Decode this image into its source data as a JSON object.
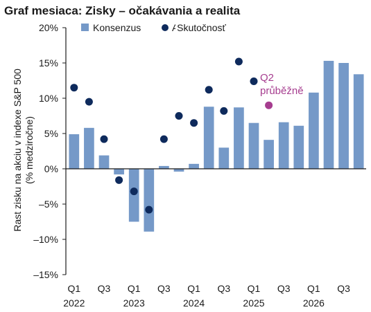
{
  "chart_data": {
    "type": "bar",
    "title": "Graf mesiaca: Zisky – očakávania a realita",
    "ylabel_line1": "Rast zisku na akciu v indexe S&P 500",
    "ylabel_line2": "(% medziročne)",
    "ylim": [
      -15,
      20
    ],
    "yticks": [
      -15,
      -10,
      -5,
      0,
      5,
      10,
      15,
      20
    ],
    "ytick_labels": [
      "–15%",
      "–10%",
      "–5%",
      "0%",
      "5%",
      "10%",
      "15%",
      "20%"
    ],
    "x_quarter_ticks": [
      {
        "label": "Q1",
        "index": 0
      },
      {
        "label": "Q3",
        "index": 2
      },
      {
        "label": "Q1",
        "index": 4
      },
      {
        "label": "Q3",
        "index": 6
      },
      {
        "label": "Q1",
        "index": 8
      },
      {
        "label": "Q3",
        "index": 10
      },
      {
        "label": "Q1",
        "index": 12
      },
      {
        "label": "Q3",
        "index": 14
      },
      {
        "label": "Q1",
        "index": 16
      },
      {
        "label": "Q3",
        "index": 18
      }
    ],
    "x_year_ticks": [
      {
        "label": "2022",
        "index": 0
      },
      {
        "label": "2023",
        "index": 4
      },
      {
        "label": "2024",
        "index": 8
      },
      {
        "label": "2025",
        "index": 12
      },
      {
        "label": "2026",
        "index": 16
      }
    ],
    "series": [
      {
        "name": "Konsenzus",
        "kind": "bar",
        "color": "#7599c8",
        "values": [
          4.9,
          5.8,
          1.9,
          -0.8,
          -7.5,
          -8.9,
          0.4,
          -0.4,
          0.7,
          8.8,
          3.0,
          8.7,
          6.5,
          4.1,
          6.6,
          6.1,
          10.8,
          15.3,
          15.0,
          13.4
        ]
      },
      {
        "name": "Skutočnosť",
        "legend_prefix": "A",
        "kind": "dot",
        "color": "#0e2a5c",
        "values": [
          11.5,
          9.5,
          4.2,
          -1.6,
          -3.2,
          -5.8,
          4.2,
          7.5,
          6.5,
          11.2,
          8.2,
          15.2,
          12.4,
          null,
          null,
          null,
          null,
          null,
          null,
          null
        ]
      }
    ],
    "annotation": {
      "line1": "Q2",
      "line2": "průběžně",
      "index": 13,
      "value": 9.0,
      "color": "#a63d8f"
    },
    "legend_position": "top-center",
    "grid": false
  }
}
